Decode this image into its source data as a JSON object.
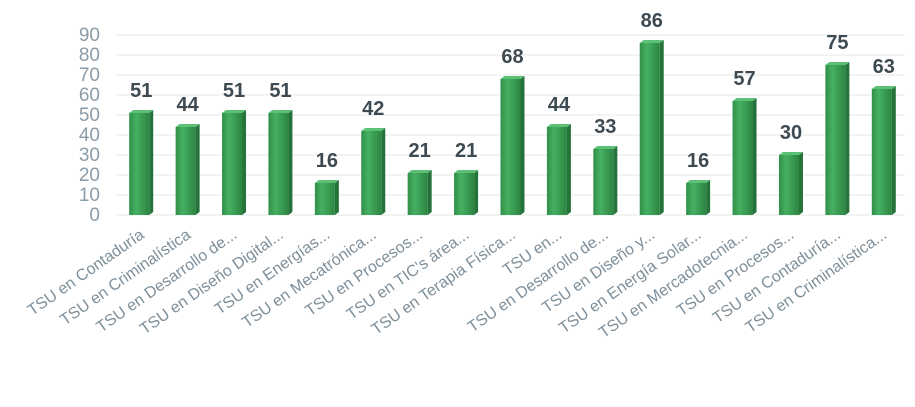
{
  "chart_data": {
    "type": "bar",
    "categories": [
      "TSU en Contaduría",
      "TSU en Criminalística",
      "TSU en Desarrollo de...",
      "TSU en Diseño Digital...",
      "TSU en Energías...",
      "TSU en Mecatrónica...",
      "TSU en Procesos...",
      "TSU en TIC's área...",
      "TSU en Terapia Física...",
      "TSU en...",
      "TSU en Desarrollo de...",
      "TSU en Diseño y...",
      "TSU en Energía Solar...",
      "TSU en Mercadotecnia...",
      "TSU en Procesos...",
      "TSU en Contaduría...",
      "TSU en Criminalística..."
    ],
    "values": [
      51,
      44,
      51,
      51,
      16,
      42,
      21,
      21,
      68,
      44,
      33,
      86,
      16,
      57,
      30,
      75,
      63
    ],
    "ylim": [
      0,
      90
    ],
    "yticks": [
      0,
      10,
      20,
      30,
      40,
      50,
      60,
      70,
      80,
      90
    ],
    "bar_color": "#3fa65a",
    "title": "",
    "xlabel": "",
    "ylabel": "",
    "grid": true,
    "data_labels": true
  }
}
